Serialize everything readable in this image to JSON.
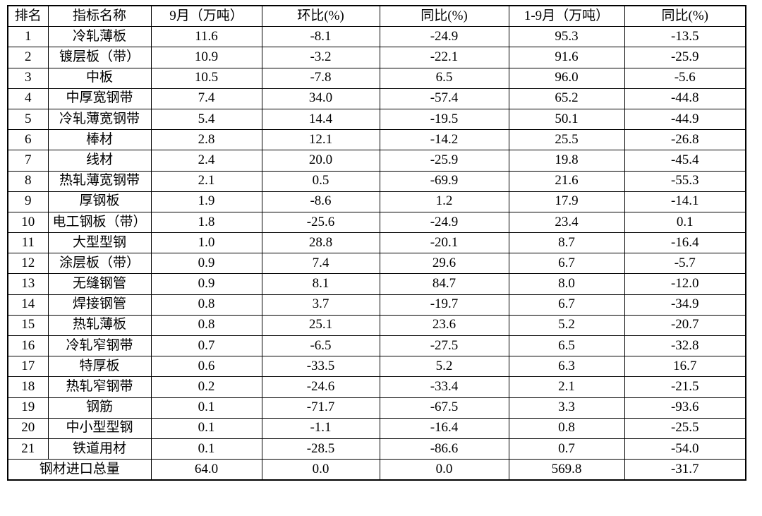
{
  "table": {
    "headers": [
      "排名",
      "指标名称",
      "9月（万吨）",
      "环比(%)",
      "同比(%)",
      "1-9月（万吨）",
      "同比(%)"
    ],
    "rows": [
      [
        "1",
        "冷轧薄板",
        "11.6",
        "-8.1",
        "-24.9",
        "95.3",
        "-13.5"
      ],
      [
        "2",
        "镀层板（带）",
        "10.9",
        "-3.2",
        "-22.1",
        "91.6",
        "-25.9"
      ],
      [
        "3",
        "中板",
        "10.5",
        "-7.8",
        "6.5",
        "96.0",
        "-5.6"
      ],
      [
        "4",
        "中厚宽钢带",
        "7.4",
        "34.0",
        "-57.4",
        "65.2",
        "-44.8"
      ],
      [
        "5",
        "冷轧薄宽钢带",
        "5.4",
        "14.4",
        "-19.5",
        "50.1",
        "-44.9"
      ],
      [
        "6",
        "棒材",
        "2.8",
        "12.1",
        "-14.2",
        "25.5",
        "-26.8"
      ],
      [
        "7",
        "线材",
        "2.4",
        "20.0",
        "-25.9",
        "19.8",
        "-45.4"
      ],
      [
        "8",
        "热轧薄宽钢带",
        "2.1",
        "0.5",
        "-69.9",
        "21.6",
        "-55.3"
      ],
      [
        "9",
        "厚钢板",
        "1.9",
        "-8.6",
        "1.2",
        "17.9",
        "-14.1"
      ],
      [
        "10",
        "电工钢板（带）",
        "1.8",
        "-25.6",
        "-24.9",
        "23.4",
        "0.1"
      ],
      [
        "11",
        "大型型钢",
        "1.0",
        "28.8",
        "-20.1",
        "8.7",
        "-16.4"
      ],
      [
        "12",
        "涂层板（带）",
        "0.9",
        "7.4",
        "29.6",
        "6.7",
        "-5.7"
      ],
      [
        "13",
        "无缝钢管",
        "0.9",
        "8.1",
        "84.7",
        "8.0",
        "-12.0"
      ],
      [
        "14",
        "焊接钢管",
        "0.8",
        "3.7",
        "-19.7",
        "6.7",
        "-34.9"
      ],
      [
        "15",
        "热轧薄板",
        "0.8",
        "25.1",
        "23.6",
        "5.2",
        "-20.7"
      ],
      [
        "16",
        "冷轧窄钢带",
        "0.7",
        "-6.5",
        "-27.5",
        "6.5",
        "-32.8"
      ],
      [
        "17",
        "特厚板",
        "0.6",
        "-33.5",
        "5.2",
        "6.3",
        "16.7"
      ],
      [
        "18",
        "热轧窄钢带",
        "0.2",
        "-24.6",
        "-33.4",
        "2.1",
        "-21.5"
      ],
      [
        "19",
        "钢筋",
        "0.1",
        "-71.7",
        "-67.5",
        "3.3",
        "-93.6"
      ],
      [
        "20",
        "中小型型钢",
        "0.1",
        "-1.1",
        "-16.4",
        "0.8",
        "-25.5"
      ],
      [
        "21",
        "铁道用材",
        "0.1",
        "-28.5",
        "-86.6",
        "0.7",
        "-54.0"
      ]
    ],
    "total_row": {
      "label": "钢材进口总量",
      "values": [
        "64.0",
        "0.0",
        "0.0",
        "569.8",
        "-31.7"
      ]
    }
  },
  "colors": {
    "border": "#000000",
    "text": "#000000",
    "background": "#ffffff"
  }
}
